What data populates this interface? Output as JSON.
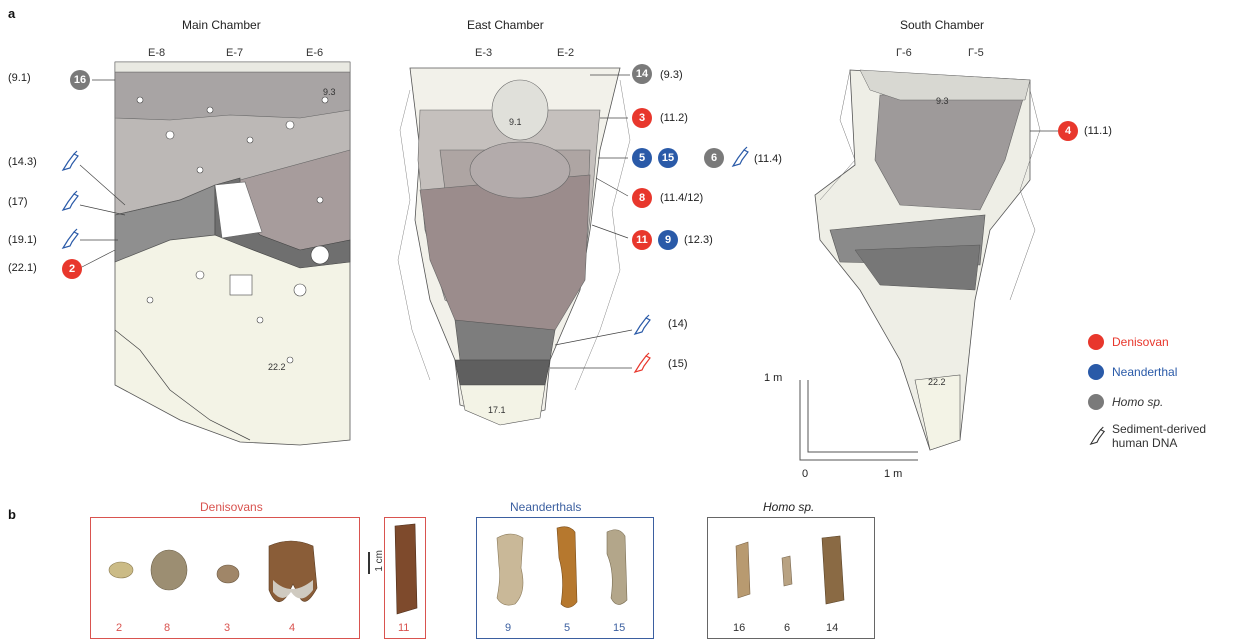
{
  "panel_a": {
    "letter": "a"
  },
  "panel_b": {
    "letter": "b"
  },
  "chambers": {
    "main": {
      "title": "Main Chamber",
      "grid": [
        "E-8",
        "E-7",
        "E-6"
      ],
      "layers": [
        "9.3",
        "22.2"
      ]
    },
    "east": {
      "title": "East Chamber",
      "grid": [
        "E-3",
        "E-2"
      ],
      "layers": [
        "9.1",
        "17.1"
      ]
    },
    "south": {
      "title": "South Chamber",
      "grid": [
        "Г-6",
        "Г-5"
      ],
      "layers": [
        "9.3",
        "22.2"
      ]
    }
  },
  "main_labels": [
    "(9.1)",
    "(14.3)",
    "(17)",
    "(19.1)",
    "(22.1)"
  ],
  "main_badges": {
    "top": "16",
    "bottom": "2"
  },
  "east_labels": {
    "l1": "(9.3)",
    "l2": "(11.2)",
    "l3": "(11.4)",
    "l4": "(11.4/12)",
    "l5": "(12.3)",
    "l6": "(14)",
    "l7": "(15)"
  },
  "east_badges": {
    "b14": "14",
    "b3": "3",
    "b5": "5",
    "b15": "15",
    "b6": "6",
    "b8": "8",
    "b11": "11",
    "b9": "9"
  },
  "south_badge": {
    "num": "4",
    "label": "(11.1)"
  },
  "scale": {
    "vertical": "1 m",
    "zero": "0",
    "horizontal": "1 m"
  },
  "legend": {
    "denisovan": "Denisovan",
    "neanderthal": "Neanderthal",
    "homo": "Homo sp.",
    "sediment_line1": "Sediment-derived",
    "sediment_line2": "human DNA"
  },
  "fossils": {
    "denisovans_title": "Denisovans",
    "neanderthals_title": "Neanderthals",
    "homo_title": "Homo sp.",
    "scale_bar": "1 cm",
    "denisovan_ids": [
      "2",
      "8",
      "3",
      "4"
    ],
    "extra_id": "11",
    "neanderthal_ids": [
      "9",
      "5",
      "15"
    ],
    "homo_ids": [
      "16",
      "6",
      "14"
    ]
  },
  "colors": {
    "denisovan": "#e8372c",
    "neanderthal": "#2a5aa8",
    "homo": "#7a7a7a",
    "box_den": "#d9534f",
    "box_nea": "#3b5fa0"
  }
}
